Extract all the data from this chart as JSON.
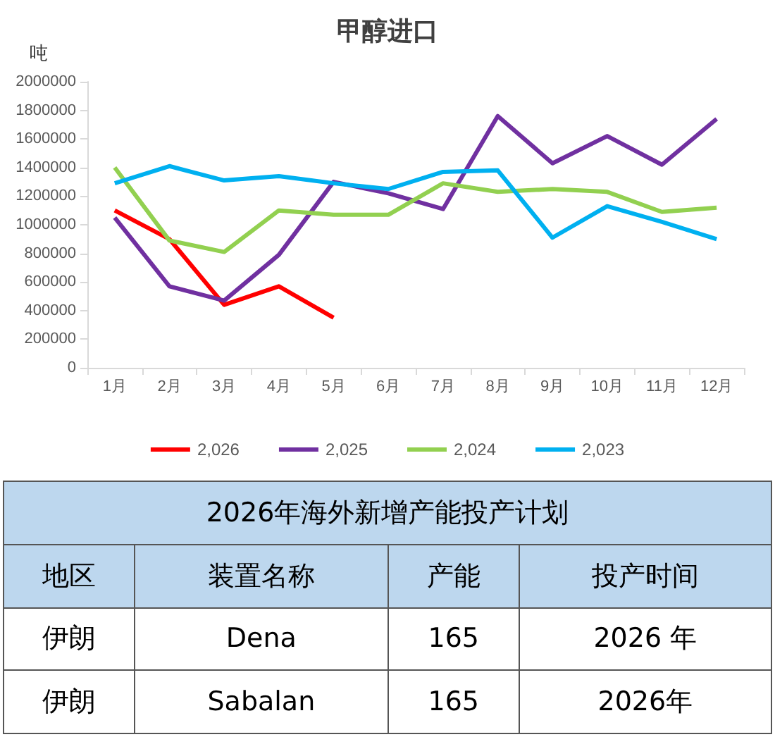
{
  "chart_data": [
    {
      "type": "line",
      "title": "甲醇进口",
      "ylabel": "吨",
      "categories": [
        "1月",
        "2月",
        "3月",
        "4月",
        "5月",
        "6月",
        "7月",
        "8月",
        "9月",
        "10月",
        "11月",
        "12月"
      ],
      "series": [
        {
          "name": "2,026",
          "color": "#ff0000",
          "values": [
            1100000,
            900000,
            440000,
            570000,
            350000,
            null,
            null,
            null,
            null,
            null,
            null,
            null
          ]
        },
        {
          "name": "2,025",
          "color": "#7030a0",
          "values": [
            1050000,
            570000,
            470000,
            790000,
            1300000,
            1220000,
            1110000,
            1760000,
            1430000,
            1620000,
            1420000,
            1740000
          ]
        },
        {
          "name": "2,024",
          "color": "#92d050",
          "values": [
            1400000,
            890000,
            810000,
            1100000,
            1070000,
            1070000,
            1290000,
            1230000,
            1250000,
            1230000,
            1090000,
            1120000
          ]
        },
        {
          "name": "2,023",
          "color": "#00b0f0",
          "values": [
            1290000,
            1410000,
            1310000,
            1340000,
            1290000,
            1250000,
            1370000,
            1380000,
            910000,
            1130000,
            1020000,
            900000
          ]
        }
      ],
      "ylim": [
        0,
        2000000
      ],
      "yticks": [
        0,
        200000,
        400000,
        600000,
        800000,
        1000000,
        1200000,
        1400000,
        1600000,
        1800000,
        2000000
      ],
      "grid": false,
      "legend": "bottom",
      "marker": "none",
      "line_style": "solid"
    },
    {
      "type": "other",
      "title": "2026年海外新增产能投产计划",
      "annotations": [
        "地区",
        "装置名称",
        "产能",
        "投产时间",
        "伊朗",
        "Dena",
        "165",
        "2026 年",
        "伊朗",
        "Sabalan",
        "165",
        "2026年"
      ]
    }
  ]
}
